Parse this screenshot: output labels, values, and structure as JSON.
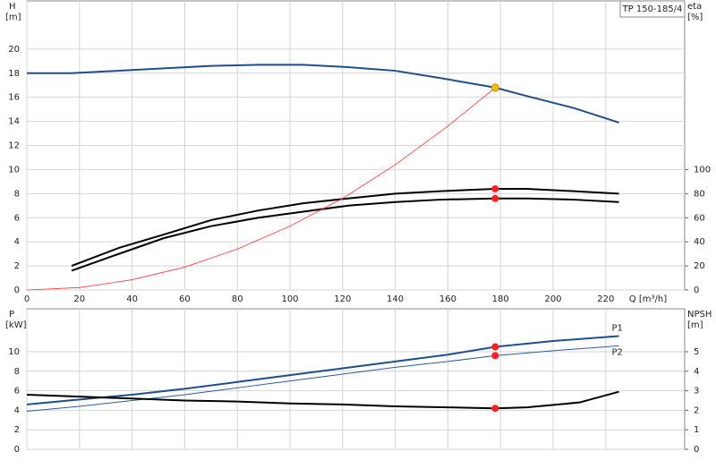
{
  "chart_data": [
    {
      "type": "line",
      "title": "TP 150-185/4",
      "ylabel": "H",
      "yunit": "[m]",
      "y2label": "eta",
      "y2unit": "[%]",
      "xlabel": "Q [m³/h]",
      "xlim": [
        0,
        250
      ],
      "xticks": [
        0,
        20,
        40,
        60,
        80,
        100,
        120,
        140,
        160,
        180,
        200,
        220
      ],
      "show_xtick_labels": true,
      "ylim": [
        0,
        24
      ],
      "yticks": [
        0,
        2,
        4,
        6,
        8,
        10,
        12,
        14,
        16,
        18,
        20
      ],
      "y2lim": [
        0,
        240
      ],
      "y2ticks": [
        0,
        20,
        40,
        60,
        80,
        100
      ],
      "grid": true,
      "series": [
        {
          "color": "#1f4e8c",
          "linewidth": 2,
          "x": [
            0,
            17,
            35,
            52,
            70,
            88,
            105,
            122,
            140,
            157,
            178,
            190,
            208,
            225
          ],
          "values": [
            18.0,
            18.0,
            18.2,
            18.4,
            18.6,
            18.7,
            18.7,
            18.5,
            18.2,
            17.6,
            16.8,
            16.1,
            15.1,
            13.9
          ]
        },
        {
          "color": "#000000",
          "linewidth": 2,
          "axis": "y2",
          "x": [
            17,
            35,
            52,
            70,
            88,
            105,
            122,
            140,
            157,
            178,
            190,
            208,
            225
          ],
          "values": [
            20,
            35,
            46,
            58,
            66,
            72,
            76,
            80,
            82,
            84,
            84,
            82,
            80
          ]
        },
        {
          "color": "#000000",
          "linewidth": 2,
          "axis": "y2",
          "x": [
            17,
            35,
            52,
            70,
            88,
            105,
            122,
            140,
            157,
            178,
            190,
            208,
            225
          ],
          "values": [
            16,
            30,
            43,
            53,
            60,
            65,
            70,
            73,
            75,
            76,
            76,
            75,
            73
          ]
        },
        {
          "color": "#ff3333",
          "linewidth": 0.8,
          "x": [
            0,
            20,
            40,
            60,
            80,
            100,
            120,
            140,
            160,
            178
          ],
          "values": [
            0,
            0.2,
            0.85,
            1.9,
            3.4,
            5.3,
            7.6,
            10.4,
            13.6,
            16.8
          ]
        },
        {
          "type": "point",
          "color": "#ffc000",
          "x": [
            178
          ],
          "values": [
            16.8
          ]
        },
        {
          "type": "point",
          "color": "#ff2020",
          "axis": "y2",
          "x": [
            178,
            178
          ],
          "values": [
            84,
            76
          ]
        }
      ]
    },
    {
      "type": "line",
      "ylabel": "P",
      "yunit": "[kW]",
      "y2label": "NPSH",
      "y2unit": "[m]",
      "xlim": [
        0,
        250
      ],
      "xticks": [
        0,
        20,
        40,
        60,
        80,
        100,
        120,
        140,
        160,
        180,
        200,
        220
      ],
      "show_xtick_labels": false,
      "ylim": [
        0,
        14.4
      ],
      "yticks": [
        0,
        2,
        4,
        6,
        8,
        10
      ],
      "y2lim": [
        0,
        7.2
      ],
      "y2ticks": [
        0,
        1,
        2,
        3,
        4,
        5
      ],
      "grid": true,
      "series": [
        {
          "name": "P1",
          "color": "#1f4e8c",
          "linewidth": 2,
          "x": [
            0,
            20,
            40,
            60,
            80,
            100,
            120,
            140,
            160,
            178,
            200,
            225
          ],
          "values": [
            4.6,
            5.1,
            5.6,
            6.2,
            6.9,
            7.6,
            8.3,
            9.0,
            9.7,
            10.5,
            11.1,
            11.6
          ]
        },
        {
          "name": "P2",
          "color": "#2a5d9a",
          "linewidth": 1,
          "x": [
            0,
            20,
            40,
            60,
            80,
            100,
            120,
            140,
            160,
            178,
            200,
            225
          ],
          "values": [
            3.9,
            4.4,
            5.0,
            5.6,
            6.3,
            7.0,
            7.7,
            8.4,
            9.0,
            9.6,
            10.1,
            10.6
          ]
        },
        {
          "color": "#000000",
          "linewidth": 2,
          "axis": "y2",
          "x": [
            0,
            20,
            40,
            60,
            80,
            100,
            120,
            140,
            160,
            178,
            190,
            210,
            225
          ],
          "values": [
            2.8,
            2.7,
            2.6,
            2.5,
            2.45,
            2.35,
            2.3,
            2.2,
            2.15,
            2.1,
            2.15,
            2.4,
            2.95
          ]
        },
        {
          "type": "point",
          "color": "#ff2020",
          "x": [
            178,
            178
          ],
          "values": [
            10.5,
            9.6
          ]
        },
        {
          "type": "point",
          "color": "#ff2020",
          "axis": "y2",
          "x": [
            178
          ],
          "values": [
            2.1
          ]
        }
      ]
    }
  ]
}
